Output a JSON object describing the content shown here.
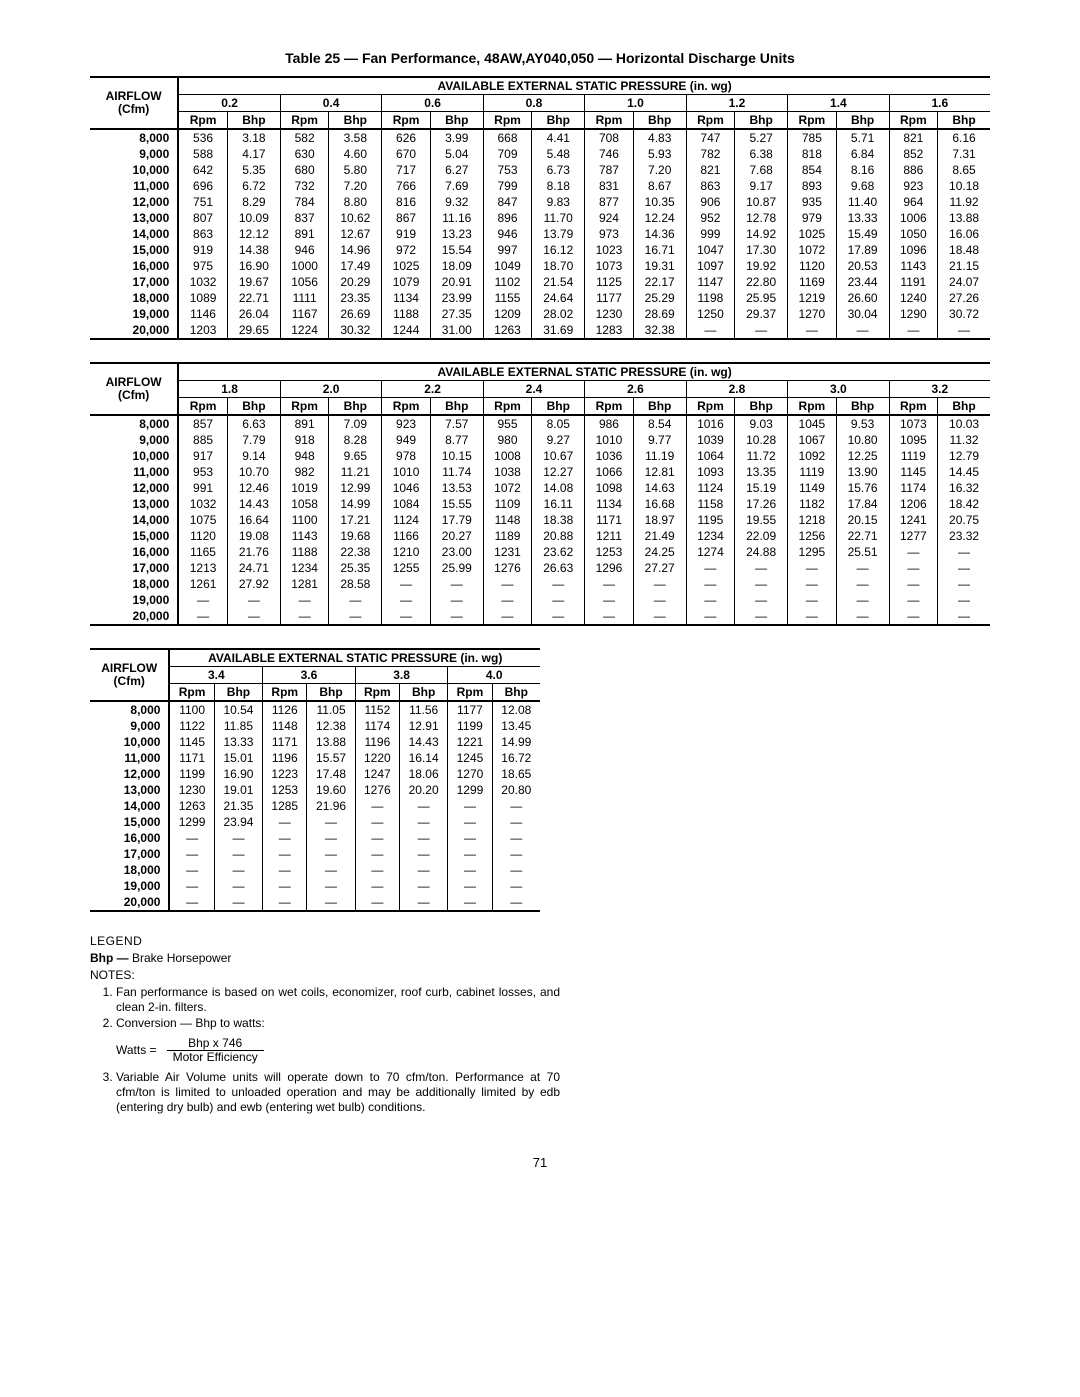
{
  "title": "Table 25 — Fan Performance, 48AW,AY040,050 — Horizontal Discharge Units",
  "groupHeader": "AVAILABLE EXTERNAL STATIC PRESSURE (in. wg)",
  "airflowHeader": "AIRFLOW\n(Cfm)",
  "subHeaders": [
    "Rpm",
    "Bhp"
  ],
  "airflows": [
    "8,000",
    "9,000",
    "10,000",
    "11,000",
    "12,000",
    "13,000",
    "14,000",
    "15,000",
    "16,000",
    "17,000",
    "18,000",
    "19,000",
    "20,000"
  ],
  "tables": [
    {
      "pressures": [
        "0.2",
        "0.4",
        "0.6",
        "0.8",
        "1.0",
        "1.2",
        "1.4",
        "1.6"
      ],
      "rows": [
        [
          [
            "536",
            "3.18"
          ],
          [
            "582",
            "3.58"
          ],
          [
            "626",
            "3.99"
          ],
          [
            "668",
            "4.41"
          ],
          [
            "708",
            "4.83"
          ],
          [
            "747",
            "5.27"
          ],
          [
            "785",
            "5.71"
          ],
          [
            "821",
            "6.16"
          ]
        ],
        [
          [
            "588",
            "4.17"
          ],
          [
            "630",
            "4.60"
          ],
          [
            "670",
            "5.04"
          ],
          [
            "709",
            "5.48"
          ],
          [
            "746",
            "5.93"
          ],
          [
            "782",
            "6.38"
          ],
          [
            "818",
            "6.84"
          ],
          [
            "852",
            "7.31"
          ]
        ],
        [
          [
            "642",
            "5.35"
          ],
          [
            "680",
            "5.80"
          ],
          [
            "717",
            "6.27"
          ],
          [
            "753",
            "6.73"
          ],
          [
            "787",
            "7.20"
          ],
          [
            "821",
            "7.68"
          ],
          [
            "854",
            "8.16"
          ],
          [
            "886",
            "8.65"
          ]
        ],
        [
          [
            "696",
            "6.72"
          ],
          [
            "732",
            "7.20"
          ],
          [
            "766",
            "7.69"
          ],
          [
            "799",
            "8.18"
          ],
          [
            "831",
            "8.67"
          ],
          [
            "863",
            "9.17"
          ],
          [
            "893",
            "9.68"
          ],
          [
            "923",
            "10.18"
          ]
        ],
        [
          [
            "751",
            "8.29"
          ],
          [
            "784",
            "8.80"
          ],
          [
            "816",
            "9.32"
          ],
          [
            "847",
            "9.83"
          ],
          [
            "877",
            "10.35"
          ],
          [
            "906",
            "10.87"
          ],
          [
            "935",
            "11.40"
          ],
          [
            "964",
            "11.92"
          ]
        ],
        [
          [
            "807",
            "10.09"
          ],
          [
            "837",
            "10.62"
          ],
          [
            "867",
            "11.16"
          ],
          [
            "896",
            "11.70"
          ],
          [
            "924",
            "12.24"
          ],
          [
            "952",
            "12.78"
          ],
          [
            "979",
            "13.33"
          ],
          [
            "1006",
            "13.88"
          ]
        ],
        [
          [
            "863",
            "12.12"
          ],
          [
            "891",
            "12.67"
          ],
          [
            "919",
            "13.23"
          ],
          [
            "946",
            "13.79"
          ],
          [
            "973",
            "14.36"
          ],
          [
            "999",
            "14.92"
          ],
          [
            "1025",
            "15.49"
          ],
          [
            "1050",
            "16.06"
          ]
        ],
        [
          [
            "919",
            "14.38"
          ],
          [
            "946",
            "14.96"
          ],
          [
            "972",
            "15.54"
          ],
          [
            "997",
            "16.12"
          ],
          [
            "1023",
            "16.71"
          ],
          [
            "1047",
            "17.30"
          ],
          [
            "1072",
            "17.89"
          ],
          [
            "1096",
            "18.48"
          ]
        ],
        [
          [
            "975",
            "16.90"
          ],
          [
            "1000",
            "17.49"
          ],
          [
            "1025",
            "18.09"
          ],
          [
            "1049",
            "18.70"
          ],
          [
            "1073",
            "19.31"
          ],
          [
            "1097",
            "19.92"
          ],
          [
            "1120",
            "20.53"
          ],
          [
            "1143",
            "21.15"
          ]
        ],
        [
          [
            "1032",
            "19.67"
          ],
          [
            "1056",
            "20.29"
          ],
          [
            "1079",
            "20.91"
          ],
          [
            "1102",
            "21.54"
          ],
          [
            "1125",
            "22.17"
          ],
          [
            "1147",
            "22.80"
          ],
          [
            "1169",
            "23.44"
          ],
          [
            "1191",
            "24.07"
          ]
        ],
        [
          [
            "1089",
            "22.71"
          ],
          [
            "1111",
            "23.35"
          ],
          [
            "1134",
            "23.99"
          ],
          [
            "1155",
            "24.64"
          ],
          [
            "1177",
            "25.29"
          ],
          [
            "1198",
            "25.95"
          ],
          [
            "1219",
            "26.60"
          ],
          [
            "1240",
            "27.26"
          ]
        ],
        [
          [
            "1146",
            "26.04"
          ],
          [
            "1167",
            "26.69"
          ],
          [
            "1188",
            "27.35"
          ],
          [
            "1209",
            "28.02"
          ],
          [
            "1230",
            "28.69"
          ],
          [
            "1250",
            "29.37"
          ],
          [
            "1270",
            "30.04"
          ],
          [
            "1290",
            "30.72"
          ]
        ],
        [
          [
            "1203",
            "29.65"
          ],
          [
            "1224",
            "30.32"
          ],
          [
            "1244",
            "31.00"
          ],
          [
            "1263",
            "31.69"
          ],
          [
            "1283",
            "32.38"
          ],
          [
            "—",
            "—"
          ],
          [
            "—",
            "—"
          ],
          [
            "—",
            "—"
          ]
        ]
      ]
    },
    {
      "pressures": [
        "1.8",
        "2.0",
        "2.2",
        "2.4",
        "2.6",
        "2.8",
        "3.0",
        "3.2"
      ],
      "rows": [
        [
          [
            "857",
            "6.63"
          ],
          [
            "891",
            "7.09"
          ],
          [
            "923",
            "7.57"
          ],
          [
            "955",
            "8.05"
          ],
          [
            "986",
            "8.54"
          ],
          [
            "1016",
            "9.03"
          ],
          [
            "1045",
            "9.53"
          ],
          [
            "1073",
            "10.03"
          ]
        ],
        [
          [
            "885",
            "7.79"
          ],
          [
            "918",
            "8.28"
          ],
          [
            "949",
            "8.77"
          ],
          [
            "980",
            "9.27"
          ],
          [
            "1010",
            "9.77"
          ],
          [
            "1039",
            "10.28"
          ],
          [
            "1067",
            "10.80"
          ],
          [
            "1095",
            "11.32"
          ]
        ],
        [
          [
            "917",
            "9.14"
          ],
          [
            "948",
            "9.65"
          ],
          [
            "978",
            "10.15"
          ],
          [
            "1008",
            "10.67"
          ],
          [
            "1036",
            "11.19"
          ],
          [
            "1064",
            "11.72"
          ],
          [
            "1092",
            "12.25"
          ],
          [
            "1119",
            "12.79"
          ]
        ],
        [
          [
            "953",
            "10.70"
          ],
          [
            "982",
            "11.21"
          ],
          [
            "1010",
            "11.74"
          ],
          [
            "1038",
            "12.27"
          ],
          [
            "1066",
            "12.81"
          ],
          [
            "1093",
            "13.35"
          ],
          [
            "1119",
            "13.90"
          ],
          [
            "1145",
            "14.45"
          ]
        ],
        [
          [
            "991",
            "12.46"
          ],
          [
            "1019",
            "12.99"
          ],
          [
            "1046",
            "13.53"
          ],
          [
            "1072",
            "14.08"
          ],
          [
            "1098",
            "14.63"
          ],
          [
            "1124",
            "15.19"
          ],
          [
            "1149",
            "15.76"
          ],
          [
            "1174",
            "16.32"
          ]
        ],
        [
          [
            "1032",
            "14.43"
          ],
          [
            "1058",
            "14.99"
          ],
          [
            "1084",
            "15.55"
          ],
          [
            "1109",
            "16.11"
          ],
          [
            "1134",
            "16.68"
          ],
          [
            "1158",
            "17.26"
          ],
          [
            "1182",
            "17.84"
          ],
          [
            "1206",
            "18.42"
          ]
        ],
        [
          [
            "1075",
            "16.64"
          ],
          [
            "1100",
            "17.21"
          ],
          [
            "1124",
            "17.79"
          ],
          [
            "1148",
            "18.38"
          ],
          [
            "1171",
            "18.97"
          ],
          [
            "1195",
            "19.55"
          ],
          [
            "1218",
            "20.15"
          ],
          [
            "1241",
            "20.75"
          ]
        ],
        [
          [
            "1120",
            "19.08"
          ],
          [
            "1143",
            "19.68"
          ],
          [
            "1166",
            "20.27"
          ],
          [
            "1189",
            "20.88"
          ],
          [
            "1211",
            "21.49"
          ],
          [
            "1234",
            "22.09"
          ],
          [
            "1256",
            "22.71"
          ],
          [
            "1277",
            "23.32"
          ]
        ],
        [
          [
            "1165",
            "21.76"
          ],
          [
            "1188",
            "22.38"
          ],
          [
            "1210",
            "23.00"
          ],
          [
            "1231",
            "23.62"
          ],
          [
            "1253",
            "24.25"
          ],
          [
            "1274",
            "24.88"
          ],
          [
            "1295",
            "25.51"
          ],
          [
            "—",
            "—"
          ]
        ],
        [
          [
            "1213",
            "24.71"
          ],
          [
            "1234",
            "25.35"
          ],
          [
            "1255",
            "25.99"
          ],
          [
            "1276",
            "26.63"
          ],
          [
            "1296",
            "27.27"
          ],
          [
            "—",
            "—"
          ],
          [
            "—",
            "—"
          ],
          [
            "—",
            "—"
          ]
        ],
        [
          [
            "1261",
            "27.92"
          ],
          [
            "1281",
            "28.58"
          ],
          [
            "—",
            "—"
          ],
          [
            "—",
            "—"
          ],
          [
            "—",
            "—"
          ],
          [
            "—",
            "—"
          ],
          [
            "—",
            "—"
          ],
          [
            "—",
            "—"
          ]
        ],
        [
          [
            "—",
            "—"
          ],
          [
            "—",
            "—"
          ],
          [
            "—",
            "—"
          ],
          [
            "—",
            "—"
          ],
          [
            "—",
            "—"
          ],
          [
            "—",
            "—"
          ],
          [
            "—",
            "—"
          ],
          [
            "—",
            "—"
          ]
        ],
        [
          [
            "—",
            "—"
          ],
          [
            "—",
            "—"
          ],
          [
            "—",
            "—"
          ],
          [
            "—",
            "—"
          ],
          [
            "—",
            "—"
          ],
          [
            "—",
            "—"
          ],
          [
            "—",
            "—"
          ],
          [
            "—",
            "—"
          ]
        ]
      ]
    },
    {
      "pressures": [
        "3.4",
        "3.6",
        "3.8",
        "4.0"
      ],
      "rows": [
        [
          [
            "1100",
            "10.54"
          ],
          [
            "1126",
            "11.05"
          ],
          [
            "1152",
            "11.56"
          ],
          [
            "1177",
            "12.08"
          ]
        ],
        [
          [
            "1122",
            "11.85"
          ],
          [
            "1148",
            "12.38"
          ],
          [
            "1174",
            "12.91"
          ],
          [
            "1199",
            "13.45"
          ]
        ],
        [
          [
            "1145",
            "13.33"
          ],
          [
            "1171",
            "13.88"
          ],
          [
            "1196",
            "14.43"
          ],
          [
            "1221",
            "14.99"
          ]
        ],
        [
          [
            "1171",
            "15.01"
          ],
          [
            "1196",
            "15.57"
          ],
          [
            "1220",
            "16.14"
          ],
          [
            "1245",
            "16.72"
          ]
        ],
        [
          [
            "1199",
            "16.90"
          ],
          [
            "1223",
            "17.48"
          ],
          [
            "1247",
            "18.06"
          ],
          [
            "1270",
            "18.65"
          ]
        ],
        [
          [
            "1230",
            "19.01"
          ],
          [
            "1253",
            "19.60"
          ],
          [
            "1276",
            "20.20"
          ],
          [
            "1299",
            "20.80"
          ]
        ],
        [
          [
            "1263",
            "21.35"
          ],
          [
            "1285",
            "21.96"
          ],
          [
            "—",
            "—"
          ],
          [
            "—",
            "—"
          ]
        ],
        [
          [
            "1299",
            "23.94"
          ],
          [
            "—",
            "—"
          ],
          [
            "—",
            "—"
          ],
          [
            "—",
            "—"
          ]
        ],
        [
          [
            "—",
            "—"
          ],
          [
            "—",
            "—"
          ],
          [
            "—",
            "—"
          ],
          [
            "—",
            "—"
          ]
        ],
        [
          [
            "—",
            "—"
          ],
          [
            "—",
            "—"
          ],
          [
            "—",
            "—"
          ],
          [
            "—",
            "—"
          ]
        ],
        [
          [
            "—",
            "—"
          ],
          [
            "—",
            "—"
          ],
          [
            "—",
            "—"
          ],
          [
            "—",
            "—"
          ]
        ],
        [
          [
            "—",
            "—"
          ],
          [
            "—",
            "—"
          ],
          [
            "—",
            "—"
          ],
          [
            "—",
            "—"
          ]
        ],
        [
          [
            "—",
            "—"
          ],
          [
            "—",
            "—"
          ],
          [
            "—",
            "—"
          ],
          [
            "—",
            "—"
          ]
        ]
      ]
    }
  ],
  "legend": {
    "title": "LEGEND",
    "bhpLabel": "Bhp —",
    "bhpText": " Brake Horsepower",
    "notesTitle": "NOTES:",
    "note1": "Fan performance is based on wet coils, economizer, roof curb, cabinet losses, and clean 2-in. filters.",
    "note2": "Conversion — Bhp to watts:",
    "formulaLhs": "Watts =",
    "formulaNum": "Bhp x 746",
    "formulaDen": "Motor Efficiency",
    "note3": "Variable Air Volume units will operate down to 70 cfm/ton. Performance at 70 cfm/ton is limited to unloaded operation and may be additionally limited by edb (entering dry bulb) and ewb (entering wet bulb) conditions."
  },
  "pageNumber": "71"
}
